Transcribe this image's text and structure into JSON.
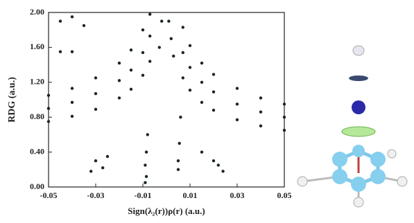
{
  "chart_data": {
    "type": "scatter",
    "x_label": "Sign(λ₂(r))ρ(r) (a.u.)",
    "y_label": "RDG (a.u.)",
    "x": [
      -0.05,
      -0.04,
      -0.03,
      -0.02,
      -0.015,
      -0.01,
      -0.007,
      -0.05,
      -0.04,
      -0.03,
      -0.02,
      -0.015,
      -0.01,
      -0.007,
      -0.05,
      -0.04,
      -0.03,
      -0.02,
      -0.015,
      -0.01,
      -0.007,
      0.05,
      0.04,
      0.03,
      0.02,
      0.015,
      0.01,
      0.007,
      0.05,
      0.04,
      0.03,
      0.02,
      0.015,
      0.01,
      0.007,
      0.05,
      0.04,
      0.03,
      0.02,
      0.015,
      0.01,
      0.007,
      -0.008,
      -0.0085,
      -0.009,
      -0.0085,
      -0.009,
      0.006,
      0.0055,
      0.005,
      0.005,
      -0.002,
      0.001,
      -0.003,
      0.002,
      0.003,
      -0.03,
      -0.027,
      -0.032,
      -0.025,
      0.02,
      0.022,
      0.015,
      0.024,
      -0.04,
      -0.045,
      -0.035,
      -0.045,
      -0.04
    ],
    "values": [
      0.75,
      0.81,
      0.89,
      1.02,
      1.12,
      1.28,
      1.44,
      0.9,
      0.97,
      1.07,
      1.22,
      1.34,
      1.54,
      1.73,
      1.05,
      1.13,
      1.25,
      1.42,
      1.57,
      1.8,
      1.98,
      0.65,
      0.7,
      0.77,
      0.88,
      0.97,
      1.11,
      1.25,
      0.8,
      0.86,
      0.95,
      1.09,
      1.2,
      1.37,
      1.54,
      0.95,
      1.02,
      1.13,
      1.29,
      1.42,
      1.62,
      1.83,
      0.6,
      0.4,
      0.25,
      0.12,
      0.05,
      0.8,
      0.5,
      0.3,
      0.2,
      1.9,
      1.9,
      1.6,
      1.7,
      1.5,
      0.3,
      0.22,
      0.18,
      0.35,
      0.3,
      0.25,
      0.4,
      0.18,
      1.95,
      1.9,
      1.85,
      1.55,
      1.55
    ],
    "color": "#1a2626",
    "xlim": [
      -0.05,
      0.05
    ],
    "xticks": [
      -0.05,
      -0.03,
      -0.01,
      0.01,
      0.03,
      0.05
    ],
    "ylim": [
      0,
      2
    ],
    "yticks": [
      {
        "value": 0,
        "label": "0.00"
      },
      {
        "value": 0.4,
        "label": "0.40"
      },
      {
        "value": 0.8,
        "label": "0.80"
      },
      {
        "value": 1.2,
        "label": "1.20"
      },
      {
        "value": 1.6,
        "label": "1.60"
      },
      {
        "value": 2,
        "label": "2.00"
      }
    ],
    "grid": false
  }
}
